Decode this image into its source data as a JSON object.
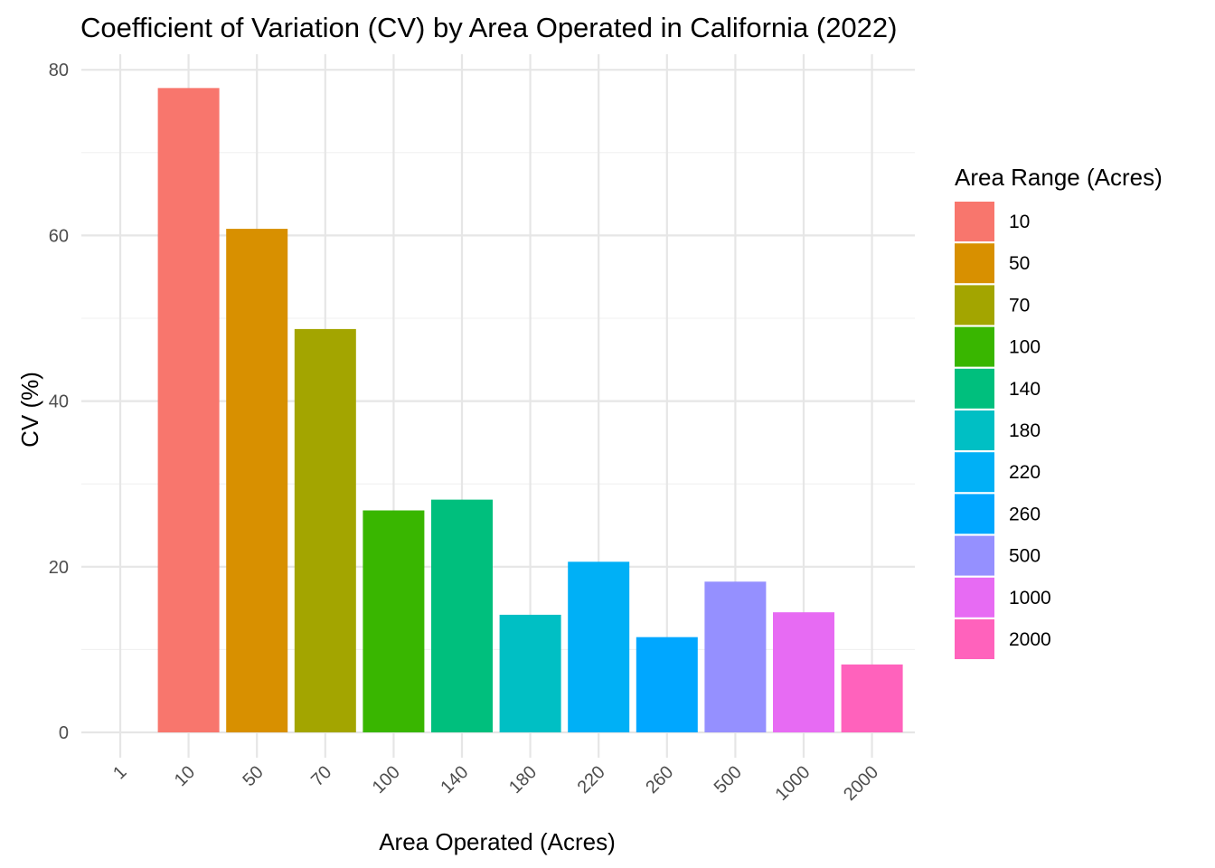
{
  "chart_data": {
    "type": "bar",
    "title": "Coefficient of Variation (CV) by Area Operated in California (2022)",
    "xlabel": "Area Operated (Acres)",
    "ylabel": "CV (%)",
    "x_ticks": [
      "1",
      "10",
      "50",
      "70",
      "100",
      "140",
      "180",
      "220",
      "260",
      "500",
      "1000",
      "2000"
    ],
    "y_ticks": [
      "0",
      "20",
      "40",
      "60",
      "80"
    ],
    "ylim": [
      0,
      80
    ],
    "categories": [
      "10",
      "50",
      "70",
      "100",
      "140",
      "180",
      "220",
      "260",
      "500",
      "1000",
      "2000"
    ],
    "values": [
      77.8,
      60.8,
      48.7,
      26.8,
      28.1,
      14.2,
      20.6,
      11.5,
      18.2,
      14.5,
      8.2
    ],
    "colors": [
      "#F8766D",
      "#D89000",
      "#A3A500",
      "#39B600",
      "#00BF7D",
      "#00BFC4",
      "#00B0F6",
      "#00A7FF",
      "#9590FF",
      "#E76BF3",
      "#FF62BC"
    ],
    "legend": {
      "title": "Area Range (Acres)",
      "position": "right",
      "entries": [
        "10",
        "50",
        "70",
        "100",
        "140",
        "180",
        "220",
        "260",
        "500",
        "1000",
        "2000"
      ]
    },
    "grid": true
  }
}
